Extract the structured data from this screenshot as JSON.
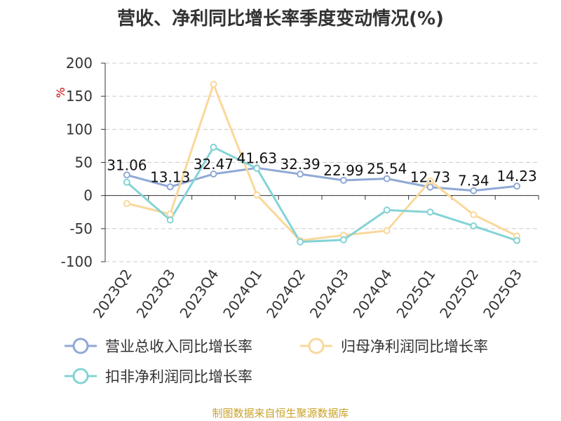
{
  "chart_data": {
    "type": "line",
    "title": "营收、净利同比增长率季度变动情况(%)",
    "ylabel": "%",
    "ylim": [
      -100,
      200
    ],
    "yticks": [
      200,
      150,
      100,
      50,
      0,
      -50,
      -100
    ],
    "categories": [
      "2023Q2",
      "2023Q3",
      "2023Q4",
      "2024Q1",
      "2024Q2",
      "2024Q3",
      "2024Q4",
      "2025Q1",
      "2025Q2",
      "2025Q3"
    ],
    "grid": true,
    "legend_position": "bottom",
    "series": [
      {
        "name": "营业总收入同比增长率",
        "color": "#8fa9d6",
        "values": [
          31.06,
          13.13,
          32.47,
          41.63,
          32.39,
          22.99,
          25.54,
          12.73,
          7.34,
          14.23
        ],
        "labels": [
          "31.06",
          "13.13",
          "32.47",
          "41.63",
          "32.39",
          "22.99",
          "25.54",
          "12.73",
          "7.34",
          "14.23"
        ]
      },
      {
        "name": "归母净利润同比增长率",
        "color": "#f9d89a",
        "values": [
          -12,
          -28,
          168,
          1,
          -68,
          -60,
          -53,
          22,
          -29,
          -61
        ]
      },
      {
        "name": "扣非净利润同比增长率",
        "color": "#84d3d6",
        "values": [
          20,
          -37,
          73,
          41,
          -70,
          -67,
          -22,
          -25,
          -46,
          -68
        ]
      }
    ]
  },
  "footer": "制图数据来自恒生聚源数据库"
}
